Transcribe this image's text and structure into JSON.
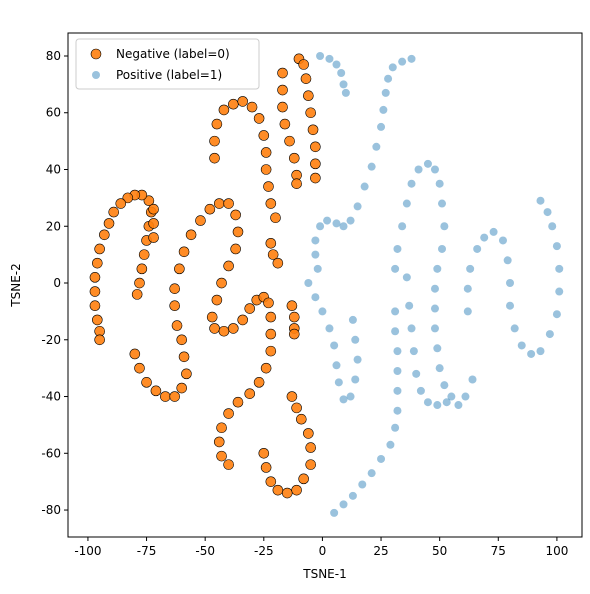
{
  "chart_data": {
    "type": "scatter",
    "x_label": "TSNE-1",
    "y_label": "TSNE-2",
    "xlim": [
      -108.5,
      110.7
    ],
    "ylim": [
      -89.5,
      88.1
    ],
    "xticks": [
      -100,
      -75,
      -50,
      -25,
      0,
      25,
      50,
      75,
      100
    ],
    "yticks": [
      -80,
      -60,
      -40,
      -20,
      0,
      20,
      40,
      60,
      80
    ],
    "legend": "upper left",
    "series": [
      {
        "name": "Negative (label=0)",
        "color": "#ff7f0e",
        "edgecolor": "#000000",
        "alpha": 0.9,
        "x": [
          -79,
          -78,
          -77,
          -76,
          -75,
          -74,
          -73,
          -74,
          -77,
          -80,
          -83,
          -86,
          -89,
          -91,
          -93,
          -95,
          -96,
          -97,
          -97,
          -97,
          -96,
          -95,
          -95,
          -72,
          -72,
          -72,
          -80,
          -78,
          -75,
          -71,
          -67,
          -63,
          -60,
          -58,
          -59,
          -60,
          -62,
          -63,
          -63,
          -61,
          -59,
          -56,
          -52,
          -48,
          -44,
          -40,
          -37,
          -36,
          -37,
          -40,
          -43,
          -45,
          -47,
          -46,
          -42,
          -38,
          -34,
          -31,
          -28,
          -25,
          -23,
          -22,
          -22,
          -22,
          -24,
          -27,
          -31,
          -36,
          -40,
          -43,
          -44,
          -43,
          -40,
          -46,
          -46,
          -45,
          -42,
          -38,
          -34,
          -30,
          -27,
          -25,
          -24,
          -24,
          -23,
          -22,
          -20,
          -22,
          -21,
          -19,
          -17,
          -17,
          -17,
          -16,
          -14,
          -12,
          -11,
          -11,
          -10,
          -8,
          -7,
          -6,
          -5,
          -4,
          -3,
          -3,
          -3,
          -13,
          -12,
          -12,
          -12,
          -25,
          -24,
          -22,
          -19,
          -15,
          -11,
          -8,
          -5,
          -5,
          -6,
          -9,
          -11,
          -13
        ],
        "values": [
          -4,
          0,
          5,
          10,
          15,
          20,
          25,
          29,
          31,
          31,
          30,
          28,
          25,
          21,
          17,
          12,
          7,
          2,
          -3,
          -8,
          -13,
          -17,
          -20,
          26,
          21,
          16,
          -25,
          -30,
          -35,
          -38,
          -40,
          -40,
          -37,
          -32,
          -26,
          -20,
          -15,
          -8,
          -2,
          5,
          11,
          17,
          22,
          26,
          28,
          28,
          24,
          18,
          12,
          6,
          0,
          -6,
          -12,
          -16,
          -17,
          -16,
          -13,
          -9,
          -6,
          -5,
          -7,
          -12,
          -18,
          -24,
          -30,
          -35,
          -39,
          -42,
          -46,
          -51,
          -56,
          -61,
          -64,
          44,
          50,
          56,
          61,
          63,
          64,
          62,
          58,
          52,
          46,
          40,
          34,
          28,
          23,
          14,
          10,
          7,
          74,
          68,
          62,
          56,
          50,
          44,
          38,
          35,
          79,
          77,
          72,
          66,
          60,
          54,
          48,
          42,
          37,
          -8,
          -12,
          -16,
          -18,
          -60,
          -65,
          -70,
          -73,
          -74,
          -73,
          -69,
          -64,
          -58,
          -53,
          -48,
          -44,
          -40
        ]
      },
      {
        "name": "Positive (label=1)",
        "color": "#1f77b4",
        "alpha": 0.45,
        "x": [
          -1,
          3,
          6,
          8,
          9,
          10,
          38,
          34,
          30,
          28,
          27,
          26,
          25,
          23,
          21,
          18,
          15,
          12,
          9,
          6,
          2,
          -1,
          -3,
          -3,
          -2,
          -6,
          -3,
          0,
          3,
          5,
          6,
          7,
          9,
          12,
          14,
          15,
          14,
          13,
          31,
          31,
          32,
          32,
          32,
          32,
          31,
          29,
          25,
          21,
          17,
          13,
          9,
          5,
          31,
          32,
          34,
          36,
          38,
          41,
          45,
          48,
          50,
          51,
          52,
          51,
          49,
          48,
          48,
          48,
          49,
          50,
          52,
          55,
          58,
          61,
          64,
          36,
          37,
          38,
          39,
          40,
          42,
          45,
          49,
          53,
          62,
          62,
          63,
          66,
          69,
          73,
          77,
          79,
          80,
          80,
          82,
          85,
          89,
          93,
          97,
          100,
          101,
          101,
          100,
          98,
          96,
          93
        ],
        "values": [
          80,
          79,
          77,
          74,
          70,
          67,
          79,
          78,
          76,
          72,
          67,
          61,
          55,
          48,
          41,
          34,
          27,
          22,
          20,
          21,
          22,
          20,
          15,
          10,
          5,
          0,
          -5,
          -10,
          -16,
          -22,
          -29,
          -35,
          -41,
          -40,
          -34,
          -27,
          -20,
          -13,
          -10,
          -17,
          -24,
          -31,
          -38,
          -45,
          -51,
          -57,
          -62,
          -67,
          -71,
          -75,
          -78,
          -81,
          5,
          12,
          20,
          28,
          35,
          40,
          42,
          40,
          35,
          28,
          20,
          12,
          5,
          -2,
          -9,
          -16,
          -23,
          -30,
          -36,
          -40,
          -43,
          -40,
          -34,
          2,
          -8,
          -16,
          -24,
          -32,
          -38,
          -42,
          -43,
          -42,
          -10,
          -2,
          5,
          12,
          16,
          18,
          15,
          8,
          0,
          -8,
          -16,
          -22,
          -25,
          -24,
          -18,
          -11,
          -3,
          5,
          13,
          20,
          25,
          29
        ]
      }
    ]
  }
}
